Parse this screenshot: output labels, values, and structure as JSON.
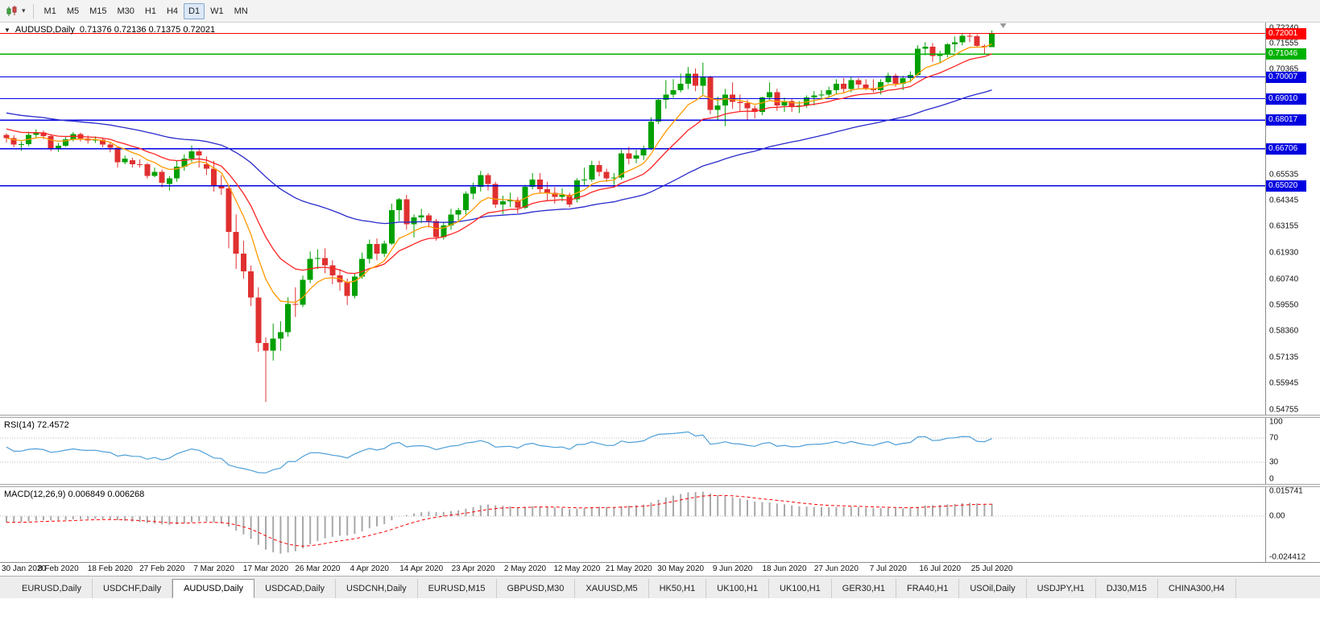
{
  "toolbar": {
    "timeframes": [
      "M1",
      "M5",
      "M15",
      "M30",
      "H1",
      "H4",
      "D1",
      "W1",
      "MN"
    ],
    "active_timeframe": "D1"
  },
  "icons": {
    "caret": "▾"
  },
  "chart": {
    "menu_marker": "▼",
    "header_symbol": "AUDUSD,Daily",
    "header_ohlc": "0.71376 0.72136 0.71375 0.72021"
  },
  "chart_data": {
    "type": "candlestick",
    "symbol": "AUDUSD",
    "timeframe": "Daily",
    "bars_per_label": 7,
    "x_labels": [
      "30 Jan 2020",
      "8 Feb 2020",
      "18 Feb 2020",
      "27 Feb 2020",
      "7 Mar 2020",
      "17 Mar 2020",
      "26 Mar 2020",
      "4 Apr 2020",
      "14 Apr 2020",
      "23 Apr 2020",
      "2 May 2020",
      "12 May 2020",
      "21 May 2020",
      "30 May 2020",
      "9 Jun 2020",
      "18 Jun 2020",
      "27 Jun 2020",
      "7 Jul 2020",
      "16 Jul 2020",
      "25 Jul 2020"
    ],
    "price_axis": {
      "min": 0.5452,
      "max": 0.725,
      "labels": [
        "0.72240",
        "0.71555",
        "0.70365",
        "0.65535",
        "0.64345",
        "0.63155",
        "0.61930",
        "0.60740",
        "0.59550",
        "0.58360",
        "0.57135",
        "0.55945",
        "0.54755"
      ]
    },
    "colors": {
      "up": "#00a000",
      "down": "#e03030",
      "background": "#ffffff"
    },
    "hlines": [
      {
        "price": 0.72001,
        "color": "#ff0000",
        "label": "0.72001"
      },
      {
        "price": 0.71046,
        "color": "#00b200",
        "label": "0.71046"
      },
      {
        "price": 0.70007,
        "color": "#0000e0",
        "label": "0.70007"
      },
      {
        "price": 0.6901,
        "color": "#0000e0",
        "label": "0.69010"
      },
      {
        "price": 0.68017,
        "color": "#0000e0",
        "label": "0.68017"
      },
      {
        "price": 0.66706,
        "color": "#0000e0",
        "label": "0.66706"
      },
      {
        "price": 0.6502,
        "color": "#0000e0",
        "label": "0.65020"
      }
    ],
    "moving_averages": [
      {
        "name": "fast",
        "period": 8,
        "color": "#ff9900",
        "seed": 0.672
      },
      {
        "name": "medium",
        "period": 16,
        "color": "#ff2222",
        "seed": 0.6768
      },
      {
        "name": "slow",
        "period": 50,
        "color": "#2929cc",
        "seed": 0.684
      }
    ],
    "candles": [
      [
        0.6735,
        0.6742,
        0.67,
        0.672
      ],
      [
        0.672,
        0.6733,
        0.6678,
        0.669
      ],
      [
        0.6688,
        0.6705,
        0.6662,
        0.6692
      ],
      [
        0.6692,
        0.675,
        0.6683,
        0.6735
      ],
      [
        0.6735,
        0.676,
        0.672,
        0.6746
      ],
      [
        0.6746,
        0.6755,
        0.6715,
        0.673
      ],
      [
        0.673,
        0.6738,
        0.666,
        0.667
      ],
      [
        0.667,
        0.6698,
        0.6657,
        0.6686
      ],
      [
        0.6686,
        0.6725,
        0.668,
        0.6715
      ],
      [
        0.6715,
        0.6748,
        0.6705,
        0.6738
      ],
      [
        0.6738,
        0.6745,
        0.6705,
        0.6718
      ],
      [
        0.6718,
        0.6732,
        0.6695,
        0.671
      ],
      [
        0.671,
        0.6728,
        0.6698,
        0.6713
      ],
      [
        0.6713,
        0.672,
        0.6678,
        0.669
      ],
      [
        0.669,
        0.67,
        0.6655,
        0.6676
      ],
      [
        0.6676,
        0.6682,
        0.6585,
        0.661
      ],
      [
        0.661,
        0.664,
        0.66,
        0.6626
      ],
      [
        0.6618,
        0.663,
        0.6585,
        0.6601
      ],
      [
        0.6601,
        0.6622,
        0.6585,
        0.66
      ],
      [
        0.66,
        0.6606,
        0.6535,
        0.6546
      ],
      [
        0.6546,
        0.6585,
        0.654,
        0.6566
      ],
      [
        0.6566,
        0.6576,
        0.6495,
        0.6515
      ],
      [
        0.651,
        0.6546,
        0.648,
        0.6536
      ],
      [
        0.6536,
        0.6615,
        0.652,
        0.659
      ],
      [
        0.659,
        0.6646,
        0.657,
        0.6626
      ],
      [
        0.6626,
        0.6686,
        0.661,
        0.666
      ],
      [
        0.666,
        0.6672,
        0.6585,
        0.664
      ],
      [
        0.66,
        0.6636,
        0.655,
        0.658
      ],
      [
        0.658,
        0.6616,
        0.6475,
        0.65
      ],
      [
        0.65,
        0.655,
        0.646,
        0.649
      ],
      [
        0.649,
        0.6502,
        0.6215,
        0.629
      ],
      [
        0.629,
        0.637,
        0.612,
        0.619
      ],
      [
        0.619,
        0.625,
        0.6075,
        0.611
      ],
      [
        0.611,
        0.6136,
        0.595,
        0.599
      ],
      [
        0.599,
        0.6036,
        0.574,
        0.578
      ],
      [
        0.578,
        0.5806,
        0.551,
        0.5746
      ],
      [
        0.5746,
        0.587,
        0.57,
        0.58
      ],
      [
        0.58,
        0.588,
        0.5745,
        0.583
      ],
      [
        0.583,
        0.599,
        0.581,
        0.596
      ],
      [
        0.596,
        0.6036,
        0.59,
        0.5956
      ],
      [
        0.5956,
        0.609,
        0.5945,
        0.607
      ],
      [
        0.607,
        0.62,
        0.6055,
        0.6166
      ],
      [
        0.6166,
        0.621,
        0.612,
        0.617
      ],
      [
        0.617,
        0.6215,
        0.61,
        0.6136
      ],
      [
        0.6136,
        0.616,
        0.605,
        0.609
      ],
      [
        0.609,
        0.612,
        0.602,
        0.606
      ],
      [
        0.606,
        0.6076,
        0.5955,
        0.5996
      ],
      [
        0.5996,
        0.61,
        0.5985,
        0.6086
      ],
      [
        0.6086,
        0.6195,
        0.6075,
        0.6166
      ],
      [
        0.6166,
        0.6255,
        0.6145,
        0.6235
      ],
      [
        0.6235,
        0.626,
        0.616,
        0.619
      ],
      [
        0.619,
        0.625,
        0.6175,
        0.6236
      ],
      [
        0.6236,
        0.642,
        0.623,
        0.639
      ],
      [
        0.639,
        0.6445,
        0.634,
        0.644
      ],
      [
        0.644,
        0.646,
        0.63,
        0.6326
      ],
      [
        0.6326,
        0.637,
        0.6265,
        0.6356
      ],
      [
        0.6356,
        0.6396,
        0.633,
        0.6366
      ],
      [
        0.6366,
        0.6376,
        0.631,
        0.634
      ],
      [
        0.634,
        0.635,
        0.625,
        0.6266
      ],
      [
        0.6266,
        0.6336,
        0.6255,
        0.632
      ],
      [
        0.632,
        0.6396,
        0.63,
        0.637
      ],
      [
        0.637,
        0.64,
        0.6335,
        0.639
      ],
      [
        0.639,
        0.6476,
        0.637,
        0.6466
      ],
      [
        0.6466,
        0.6516,
        0.644,
        0.6496
      ],
      [
        0.6496,
        0.657,
        0.6475,
        0.655
      ],
      [
        0.655,
        0.656,
        0.648,
        0.651
      ],
      [
        0.651,
        0.652,
        0.64,
        0.6416
      ],
      [
        0.6416,
        0.6456,
        0.6372,
        0.643
      ],
      [
        0.643,
        0.647,
        0.6405,
        0.6436
      ],
      [
        0.6436,
        0.645,
        0.6375,
        0.64
      ],
      [
        0.64,
        0.6506,
        0.6395,
        0.6496
      ],
      [
        0.6496,
        0.656,
        0.6485,
        0.653
      ],
      [
        0.653,
        0.656,
        0.647,
        0.6486
      ],
      [
        0.6486,
        0.652,
        0.6435,
        0.647
      ],
      [
        0.647,
        0.6496,
        0.642,
        0.645
      ],
      [
        0.645,
        0.649,
        0.643,
        0.646
      ],
      [
        0.646,
        0.647,
        0.6403,
        0.6416
      ],
      [
        0.644,
        0.6536,
        0.6425,
        0.6526
      ],
      [
        0.6526,
        0.6585,
        0.6505,
        0.653
      ],
      [
        0.653,
        0.6616,
        0.652,
        0.6596
      ],
      [
        0.6596,
        0.6616,
        0.6545,
        0.6566
      ],
      [
        0.6566,
        0.658,
        0.652,
        0.6536
      ],
      [
        0.6536,
        0.656,
        0.6505,
        0.654
      ],
      [
        0.654,
        0.6666,
        0.653,
        0.665
      ],
      [
        0.665,
        0.668,
        0.66,
        0.6626
      ],
      [
        0.6626,
        0.6666,
        0.6605,
        0.664
      ],
      [
        0.664,
        0.6686,
        0.662,
        0.667
      ],
      [
        0.667,
        0.6816,
        0.6665,
        0.6796
      ],
      [
        0.6796,
        0.69,
        0.6785,
        0.6896
      ],
      [
        0.6896,
        0.6986,
        0.6855,
        0.692
      ],
      [
        0.692,
        0.699,
        0.6905,
        0.694
      ],
      [
        0.694,
        0.7016,
        0.693,
        0.697
      ],
      [
        0.697,
        0.7046,
        0.6945,
        0.7016
      ],
      [
        0.7016,
        0.704,
        0.6935,
        0.696
      ],
      [
        0.696,
        0.7066,
        0.692,
        0.7
      ],
      [
        0.7,
        0.7006,
        0.683,
        0.685
      ],
      [
        0.685,
        0.691,
        0.68,
        0.687
      ],
      [
        0.687,
        0.6946,
        0.6775,
        0.692
      ],
      [
        0.692,
        0.6976,
        0.6855,
        0.6886
      ],
      [
        0.6886,
        0.692,
        0.684,
        0.688
      ],
      [
        0.688,
        0.6896,
        0.6805,
        0.6856
      ],
      [
        0.6856,
        0.687,
        0.681,
        0.684
      ],
      [
        0.684,
        0.691,
        0.6825,
        0.6906
      ],
      [
        0.6906,
        0.6976,
        0.689,
        0.693
      ],
      [
        0.693,
        0.6946,
        0.6845,
        0.687
      ],
      [
        0.687,
        0.6906,
        0.684,
        0.689
      ],
      [
        0.689,
        0.69,
        0.684,
        0.6866
      ],
      [
        0.6866,
        0.689,
        0.6835,
        0.687
      ],
      [
        0.687,
        0.6916,
        0.686,
        0.6906
      ],
      [
        0.6906,
        0.6936,
        0.687,
        0.6916
      ],
      [
        0.6916,
        0.694,
        0.69,
        0.692
      ],
      [
        0.692,
        0.6956,
        0.6905,
        0.694
      ],
      [
        0.694,
        0.699,
        0.692,
        0.697
      ],
      [
        0.697,
        0.6996,
        0.6925,
        0.6946
      ],
      [
        0.6946,
        0.7,
        0.693,
        0.6986
      ],
      [
        0.6986,
        0.6996,
        0.6945,
        0.6966
      ],
      [
        0.6966,
        0.699,
        0.694,
        0.695
      ],
      [
        0.695,
        0.699,
        0.693,
        0.694
      ],
      [
        0.694,
        0.699,
        0.692,
        0.6976
      ],
      [
        0.6976,
        0.702,
        0.697,
        0.7006
      ],
      [
        0.7006,
        0.7016,
        0.6955,
        0.697
      ],
      [
        0.697,
        0.7006,
        0.694,
        0.6996
      ],
      [
        0.6996,
        0.7026,
        0.6975,
        0.701
      ],
      [
        0.701,
        0.7146,
        0.7005,
        0.713
      ],
      [
        0.713,
        0.716,
        0.71,
        0.714
      ],
      [
        0.714,
        0.7156,
        0.707,
        0.7096
      ],
      [
        0.7096,
        0.712,
        0.7065,
        0.7106
      ],
      [
        0.7106,
        0.7156,
        0.709,
        0.715
      ],
      [
        0.715,
        0.7186,
        0.7115,
        0.716
      ],
      [
        0.716,
        0.7198,
        0.7145,
        0.719
      ],
      [
        0.719,
        0.72,
        0.716,
        0.7188
      ],
      [
        0.7188,
        0.7196,
        0.7135,
        0.7143
      ],
      [
        0.7143,
        0.715,
        0.7103,
        0.7138
      ],
      [
        0.71376,
        0.72136,
        0.71375,
        0.72021
      ]
    ],
    "rsi": {
      "label": "RSI(14) 72.4572",
      "period": 14,
      "color": "#4f9fd8",
      "levels": [
        70,
        30
      ],
      "range": [
        0,
        100
      ],
      "axis_labels": [
        {
          "text": "100",
          "value": 100
        },
        {
          "text": "70",
          "value": 70
        },
        {
          "text": "30",
          "value": 30
        },
        {
          "text": "0",
          "value": 0
        }
      ]
    },
    "macd": {
      "label": "MACD(12,26,9) 0.006849 0.006268",
      "fast": 12,
      "slow": 26,
      "signal_period": 9,
      "hist_color": "#a8a8a8",
      "signal_color": "#ff0000",
      "range": [
        -0.025,
        0.016
      ],
      "seeds": {
        "fast": 0.6715,
        "slow": 0.6755
      },
      "axis_labels": [
        {
          "text": "0.015741",
          "value": 0.015741
        },
        {
          "text": "0.00",
          "value": 0.0
        },
        {
          "text": "-0.024412",
          "value": -0.024412
        }
      ]
    }
  },
  "tabs": {
    "items": [
      "EURUSD,Daily",
      "USDCHF,Daily",
      "AUDUSD,Daily",
      "USDCAD,Daily",
      "USDCNH,Daily",
      "EURUSD,M15",
      "GBPUSD,M30",
      "XAUUSD,M5",
      "HK50,H1",
      "UK100,H1",
      "UK100,H1",
      "GER30,H1",
      "FRA40,H1",
      "USOil,Daily",
      "USDJPY,H1",
      "DJ30,M15",
      "CHINA300,H4"
    ],
    "active": "AUDUSD,Daily"
  }
}
